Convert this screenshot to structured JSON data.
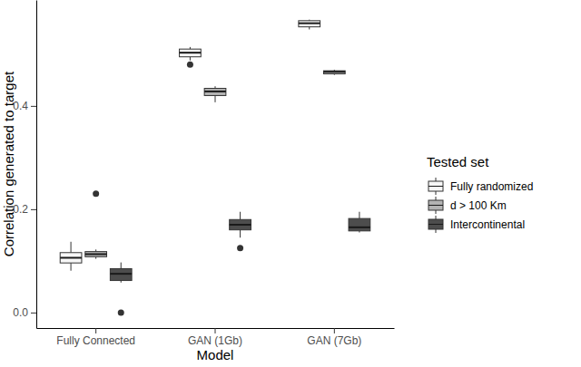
{
  "chart_data": {
    "type": "box",
    "x_label": "Model",
    "y_label": "Correlation generated to target",
    "legend_title": "Tested set",
    "legend": "right",
    "grid": false,
    "categories": [
      "Fully Connected",
      "GAN (1Gb)",
      "GAN (7Gb)"
    ],
    "ylim": [
      -0.03,
      0.605
    ],
    "yticks": [
      {
        "value": 0,
        "label": "0.0"
      },
      0.2,
      0.4
    ],
    "series": [
      {
        "name": "Fully randomized",
        "color": "#f7f7f7",
        "min": [
          0.081,
          0.488,
          0.548
        ],
        "q1": [
          0.096,
          0.495,
          0.553
        ],
        "median": [
          0.106,
          0.503,
          0.56
        ],
        "q3": [
          0.116,
          0.51,
          0.565
        ],
        "max": [
          0.137,
          0.514,
          0.567
        ],
        "outliers": [
          [],
          [
            0.48
          ],
          []
        ]
      },
      {
        "name": "d > 100 Km",
        "color": "#b3b3b3",
        "min": [
          0.104,
          0.407,
          0.46
        ],
        "q1": [
          0.108,
          0.42,
          0.462
        ],
        "median": [
          0.113,
          0.428,
          0.466
        ],
        "q3": [
          0.118,
          0.434,
          0.468
        ],
        "max": [
          0.122,
          0.438,
          0.47
        ],
        "outliers": [
          [
            0.23
          ],
          [],
          []
        ]
      },
      {
        "name": "Intercontinental",
        "color": "#4d4d4d",
        "min": [
          0.058,
          0.145,
          0.155
        ],
        "q1": [
          0.062,
          0.16,
          0.158
        ],
        "median": [
          0.075,
          0.17,
          0.165
        ],
        "q3": [
          0.085,
          0.18,
          0.182
        ],
        "max": [
          0.097,
          0.195,
          0.195
        ],
        "outliers": [
          [
            0.0
          ],
          [
            0.125
          ],
          []
        ]
      }
    ]
  }
}
